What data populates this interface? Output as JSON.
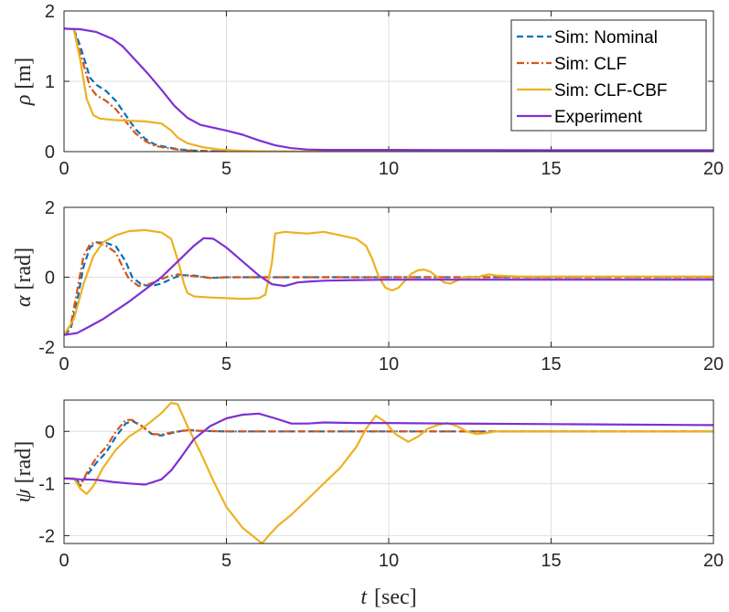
{
  "chart_data": [
    {
      "type": "line",
      "ylabel_symbol": "ρ",
      "ylabel_unit": "[m]",
      "xlim": [
        0,
        20
      ],
      "ylim": [
        0,
        2
      ],
      "xticks": [
        "0",
        "5",
        "10",
        "15",
        "20"
      ],
      "yticks": [
        "0",
        "1",
        "2"
      ],
      "grid": true,
      "legend": {
        "placement": "top-right",
        "entries": [
          "Sim: Nominal",
          "Sim: CLF",
          "Sim: CLF-CBF",
          "Experiment"
        ]
      },
      "series": [
        {
          "name": "Sim: Nominal",
          "color": "#0072BD",
          "dash": "dashed",
          "x": [
            0,
            0.3,
            0.5,
            0.8,
            1.0,
            1.3,
            1.6,
            1.9,
            2.2,
            2.5,
            2.8,
            3.2,
            3.6,
            4.0,
            4.6,
            5.5,
            7,
            10,
            20
          ],
          "y": [
            1.75,
            1.74,
            1.5,
            1.05,
            0.95,
            0.86,
            0.72,
            0.52,
            0.32,
            0.18,
            0.1,
            0.06,
            0.03,
            0.015,
            0.005,
            0,
            0,
            0,
            0
          ]
        },
        {
          "name": "Sim: CLF",
          "color": "#D95319",
          "dash": "dashdot",
          "x": [
            0,
            0.3,
            0.5,
            0.8,
            1.0,
            1.3,
            1.6,
            1.9,
            2.2,
            2.5,
            2.8,
            3.2,
            3.6,
            4.0,
            4.6,
            5.5,
            7,
            10,
            20
          ],
          "y": [
            1.75,
            1.74,
            1.4,
            0.92,
            0.8,
            0.72,
            0.6,
            0.43,
            0.26,
            0.15,
            0.08,
            0.05,
            0.025,
            0.01,
            0.005,
            0,
            0,
            0,
            0
          ]
        },
        {
          "name": "Sim: CLF-CBF",
          "color": "#EDB120",
          "dash": "solid",
          "x": [
            0,
            0.3,
            0.5,
            0.7,
            0.9,
            1.1,
            1.5,
            2.0,
            2.5,
            3.0,
            3.3,
            3.5,
            3.8,
            4.3,
            4.8,
            5.3,
            6,
            7,
            20
          ],
          "y": [
            1.75,
            1.74,
            1.3,
            0.75,
            0.52,
            0.47,
            0.45,
            0.44,
            0.43,
            0.4,
            0.3,
            0.2,
            0.12,
            0.06,
            0.03,
            0.015,
            0.005,
            0,
            0
          ]
        },
        {
          "name": "Experiment",
          "color": "#7E2FD6",
          "dash": "solid",
          "x": [
            0,
            0.5,
            1.0,
            1.5,
            1.8,
            2.2,
            2.6,
            3.0,
            3.4,
            3.8,
            4.2,
            4.6,
            5.0,
            5.5,
            6.0,
            6.5,
            7.0,
            7.5,
            8.0,
            8.5,
            10,
            12,
            15,
            20
          ],
          "y": [
            1.75,
            1.74,
            1.7,
            1.6,
            1.5,
            1.3,
            1.1,
            0.88,
            0.65,
            0.48,
            0.38,
            0.34,
            0.3,
            0.24,
            0.16,
            0.09,
            0.05,
            0.03,
            0.025,
            0.025,
            0.025,
            0.022,
            0.02,
            0.02
          ]
        }
      ]
    },
    {
      "type": "line",
      "ylabel_symbol": "α",
      "ylabel_unit": "[rad]",
      "xlim": [
        0,
        20
      ],
      "ylim": [
        -2,
        2
      ],
      "xticks": [
        "0",
        "5",
        "10",
        "15",
        "20"
      ],
      "yticks": [
        "-2",
        "0",
        "2"
      ],
      "grid": true,
      "series": [
        {
          "name": "Sim: Nominal",
          "color": "#0072BD",
          "dash": "dashed",
          "x": [
            0,
            0.2,
            0.4,
            0.6,
            0.8,
            1.0,
            1.3,
            1.6,
            1.9,
            2.1,
            2.4,
            2.7,
            3.0,
            3.3,
            3.6,
            4.0,
            4.5,
            5.0,
            6,
            8,
            10,
            20
          ],
          "y": [
            -1.65,
            -1.5,
            -0.7,
            0.3,
            0.85,
            1.0,
            0.98,
            0.88,
            0.45,
            0.0,
            -0.22,
            -0.25,
            -0.18,
            -0.05,
            0.06,
            0.05,
            -0.02,
            0.0,
            0.0,
            0,
            0,
            0
          ]
        },
        {
          "name": "Sim: CLF",
          "color": "#D95319",
          "dash": "dashdot",
          "x": [
            0,
            0.2,
            0.4,
            0.6,
            0.8,
            1.0,
            1.3,
            1.6,
            1.8,
            2.0,
            2.3,
            2.6,
            2.9,
            3.2,
            3.5,
            4.0,
            4.5,
            5.0,
            6,
            8,
            10,
            20
          ],
          "y": [
            -1.65,
            -1.4,
            -0.4,
            0.6,
            0.95,
            1.0,
            0.9,
            0.7,
            0.3,
            -0.05,
            -0.25,
            -0.2,
            -0.1,
            0.02,
            0.08,
            0.03,
            -0.02,
            0.0,
            0,
            0,
            0,
            0
          ]
        },
        {
          "name": "Sim: CLF-CBF",
          "color": "#EDB120",
          "dash": "solid",
          "x": [
            0,
            0.3,
            0.6,
            0.9,
            1.2,
            1.6,
            2.0,
            2.5,
            3.0,
            3.3,
            3.5,
            3.7,
            3.8,
            4.0,
            4.5,
            5.0,
            5.5,
            6.0,
            6.2,
            6.4,
            6.5,
            6.8,
            7.0,
            7.5,
            8.0,
            8.5,
            9.0,
            9.3,
            9.5,
            9.7,
            9.9,
            10.1,
            10.3,
            10.5,
            10.7,
            10.9,
            11.1,
            11.3,
            11.5,
            11.7,
            11.9,
            12.1,
            12.3,
            12.5,
            12.7,
            12.9,
            13.1,
            13.3,
            14,
            20
          ],
          "y": [
            -1.65,
            -1.2,
            -0.2,
            0.6,
            1.0,
            1.2,
            1.32,
            1.35,
            1.28,
            1.1,
            0.5,
            -0.2,
            -0.45,
            -0.55,
            -0.58,
            -0.6,
            -0.62,
            -0.6,
            -0.5,
            0.4,
            1.25,
            1.3,
            1.28,
            1.25,
            1.3,
            1.2,
            1.1,
            0.9,
            0.5,
            0.0,
            -0.3,
            -0.38,
            -0.3,
            -0.1,
            0.1,
            0.2,
            0.22,
            0.15,
            0.0,
            -0.15,
            -0.18,
            -0.1,
            0.0,
            0.02,
            -0.02,
            0.05,
            0.08,
            0.05,
            0.02,
            0.02
          ]
        },
        {
          "name": "Experiment",
          "color": "#7E2FD6",
          "dash": "solid",
          "x": [
            0,
            0.4,
            0.8,
            1.2,
            1.6,
            2.0,
            2.5,
            3.0,
            3.5,
            4.0,
            4.3,
            4.6,
            5.0,
            5.5,
            6.0,
            6.4,
            6.8,
            7.2,
            7.6,
            8.0,
            9.0,
            10,
            12,
            15,
            20
          ],
          "y": [
            -1.65,
            -1.6,
            -1.4,
            -1.2,
            -0.95,
            -0.7,
            -0.35,
            0.0,
            0.45,
            0.9,
            1.12,
            1.1,
            0.85,
            0.45,
            0.05,
            -0.2,
            -0.25,
            -0.15,
            -0.12,
            -0.1,
            -0.08,
            -0.07,
            -0.07,
            -0.07,
            -0.07
          ]
        }
      ]
    },
    {
      "type": "line",
      "ylabel_symbol": "ψ",
      "ylabel_unit": "[rad]",
      "xlabel_symbol": "t",
      "xlabel_unit": "[sec]",
      "xlim": [
        0,
        20
      ],
      "ylim": [
        -2.15,
        0.6
      ],
      "xticks": [
        "0",
        "5",
        "10",
        "15",
        "20"
      ],
      "yticks": [
        "-2",
        "-1",
        "0"
      ],
      "ytick_values": [
        -2,
        -1,
        0
      ],
      "grid": true,
      "series": [
        {
          "name": "Sim: Nominal",
          "color": "#0072BD",
          "dash": "dashed",
          "x": [
            0,
            0.3,
            0.5,
            0.7,
            1.0,
            1.3,
            1.6,
            1.9,
            2.1,
            2.4,
            2.7,
            3.0,
            3.4,
            3.8,
            4.2,
            5,
            6,
            8,
            10,
            20
          ],
          "y": [
            -0.9,
            -0.9,
            -1.0,
            -0.85,
            -0.6,
            -0.4,
            -0.1,
            0.15,
            0.2,
            0.1,
            -0.05,
            -0.08,
            -0.02,
            0.03,
            0.01,
            0.0,
            0,
            0,
            0,
            0
          ]
        },
        {
          "name": "Sim: CLF",
          "color": "#D95319",
          "dash": "dashdot",
          "x": [
            0,
            0.3,
            0.5,
            0.7,
            1.0,
            1.3,
            1.6,
            1.9,
            2.1,
            2.4,
            2.7,
            3.0,
            3.4,
            3.8,
            4.2,
            5,
            6,
            8,
            10,
            20
          ],
          "y": [
            -0.9,
            -0.9,
            -1.05,
            -0.8,
            -0.5,
            -0.3,
            0.0,
            0.22,
            0.22,
            0.1,
            -0.05,
            -0.06,
            -0.01,
            0.02,
            0.01,
            0.0,
            0,
            0,
            0,
            0
          ]
        },
        {
          "name": "Sim: CLF-CBF",
          "color": "#EDB120",
          "dash": "solid",
          "x": [
            0,
            0.3,
            0.5,
            0.7,
            0.9,
            1.2,
            1.6,
            2.0,
            2.5,
            3.0,
            3.3,
            3.5,
            3.8,
            4.2,
            4.6,
            5.0,
            5.5,
            6.0,
            6.1,
            6.3,
            6.6,
            7.0,
            7.5,
            8.0,
            8.5,
            9.0,
            9.3,
            9.6,
            9.9,
            10.2,
            10.6,
            10.9,
            11.2,
            11.5,
            11.8,
            12.1,
            12.4,
            12.7,
            13.0,
            13.3,
            14,
            20
          ],
          "y": [
            -0.9,
            -0.9,
            -1.1,
            -1.2,
            -1.05,
            -0.7,
            -0.35,
            -0.1,
            0.1,
            0.35,
            0.55,
            0.52,
            0.1,
            -0.4,
            -0.95,
            -1.45,
            -1.85,
            -2.1,
            -2.15,
            -2.0,
            -1.8,
            -1.6,
            -1.3,
            -1.0,
            -0.7,
            -0.3,
            0.05,
            0.3,
            0.18,
            -0.05,
            -0.2,
            -0.1,
            0.05,
            0.12,
            0.16,
            0.1,
            0.0,
            -0.05,
            -0.03,
            0.0,
            0.0,
            0.0
          ]
        },
        {
          "name": "Experiment",
          "color": "#7E2FD6",
          "dash": "solid",
          "x": [
            0,
            0.5,
            1.0,
            1.5,
            2.0,
            2.5,
            3.0,
            3.3,
            3.6,
            4.0,
            4.5,
            5.0,
            5.5,
            6.0,
            6.5,
            7.0,
            7.5,
            8.0,
            9.0,
            10,
            12,
            15,
            20
          ],
          "y": [
            -0.9,
            -0.92,
            -0.93,
            -0.97,
            -1.0,
            -1.02,
            -0.92,
            -0.75,
            -0.5,
            -0.15,
            0.1,
            0.25,
            0.32,
            0.34,
            0.25,
            0.15,
            0.15,
            0.17,
            0.16,
            0.16,
            0.15,
            0.14,
            0.12
          ]
        }
      ]
    }
  ]
}
